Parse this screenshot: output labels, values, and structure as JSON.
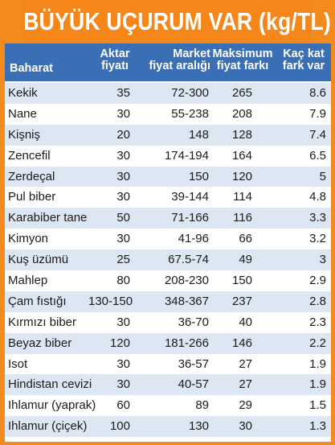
{
  "title": "BÜYÜK UÇURUM VAR (kg/TL)",
  "headers": {
    "baharat": "Baharat",
    "aktar": [
      "Aktar",
      "fiyatı"
    ],
    "market": [
      "Market",
      "fiyat aralığı"
    ],
    "maks": [
      "Maksimum",
      "fiyat farkı"
    ],
    "kac": [
      "Kaç kat",
      "fark var"
    ]
  },
  "rows": [
    {
      "name": "Kekik",
      "aktar": "35",
      "market": "72-300",
      "maks": "265",
      "kac": "8.6"
    },
    {
      "name": "Nane",
      "aktar": "30",
      "market": "55-238",
      "maks": "208",
      "kac": "7.9"
    },
    {
      "name": "Kişniş",
      "aktar": "20",
      "market": "148",
      "maks": "128",
      "kac": "7.4"
    },
    {
      "name": "Zencefil",
      "aktar": "30",
      "market": "174-194",
      "maks": "164",
      "kac": "6.5"
    },
    {
      "name": "Zerdeçal",
      "aktar": "30",
      "market": "150",
      "maks": "120",
      "kac": "5"
    },
    {
      "name": "Pul biber",
      "aktar": "30",
      "market": "39-144",
      "maks": "114",
      "kac": "4.8"
    },
    {
      "name": "Karabiber tane",
      "aktar": "50",
      "market": "71-166",
      "maks": "116",
      "kac": "3.3"
    },
    {
      "name": "Kimyon",
      "aktar": "30",
      "market": "41-96",
      "maks": "66",
      "kac": "3.2"
    },
    {
      "name": "Kuş üzümü",
      "aktar": "25",
      "market": "67.5-74",
      "maks": "49",
      "kac": "3"
    },
    {
      "name": "Mahlep",
      "aktar": "80",
      "market": "208-230",
      "maks": "150",
      "kac": "2.9"
    },
    {
      "name": "Çam fıstığı",
      "aktar": "130-150",
      "market": "348-367",
      "maks": "237",
      "kac": "2.8"
    },
    {
      "name": "Kırmızı biber",
      "aktar": "30",
      "market": "36-70",
      "maks": "40",
      "kac": "2.3"
    },
    {
      "name": "Beyaz biber",
      "aktar": "120",
      "market": "181-266",
      "maks": "146",
      "kac": "2.2"
    },
    {
      "name": "Isot",
      "aktar": "30",
      "market": "36-57",
      "maks": "27",
      "kac": "1.9"
    },
    {
      "name": "Hindistan cevizi",
      "aktar": "30",
      "market": "40-57",
      "maks": "27",
      "kac": "1.9"
    },
    {
      "name": "Ihlamur (yaprak)",
      "aktar": "60",
      "market": "89",
      "maks": "29",
      "kac": "1.5"
    },
    {
      "name": "Ihlamur (çiçek)",
      "aktar": "100",
      "market": "130",
      "maks": "30",
      "kac": "1.3"
    }
  ],
  "colors": {
    "title_bg": "#f5871a",
    "header_bg": "#3a6fb5",
    "row_alt_bg": "#dde6f3",
    "row_bg": "#ffffff"
  }
}
